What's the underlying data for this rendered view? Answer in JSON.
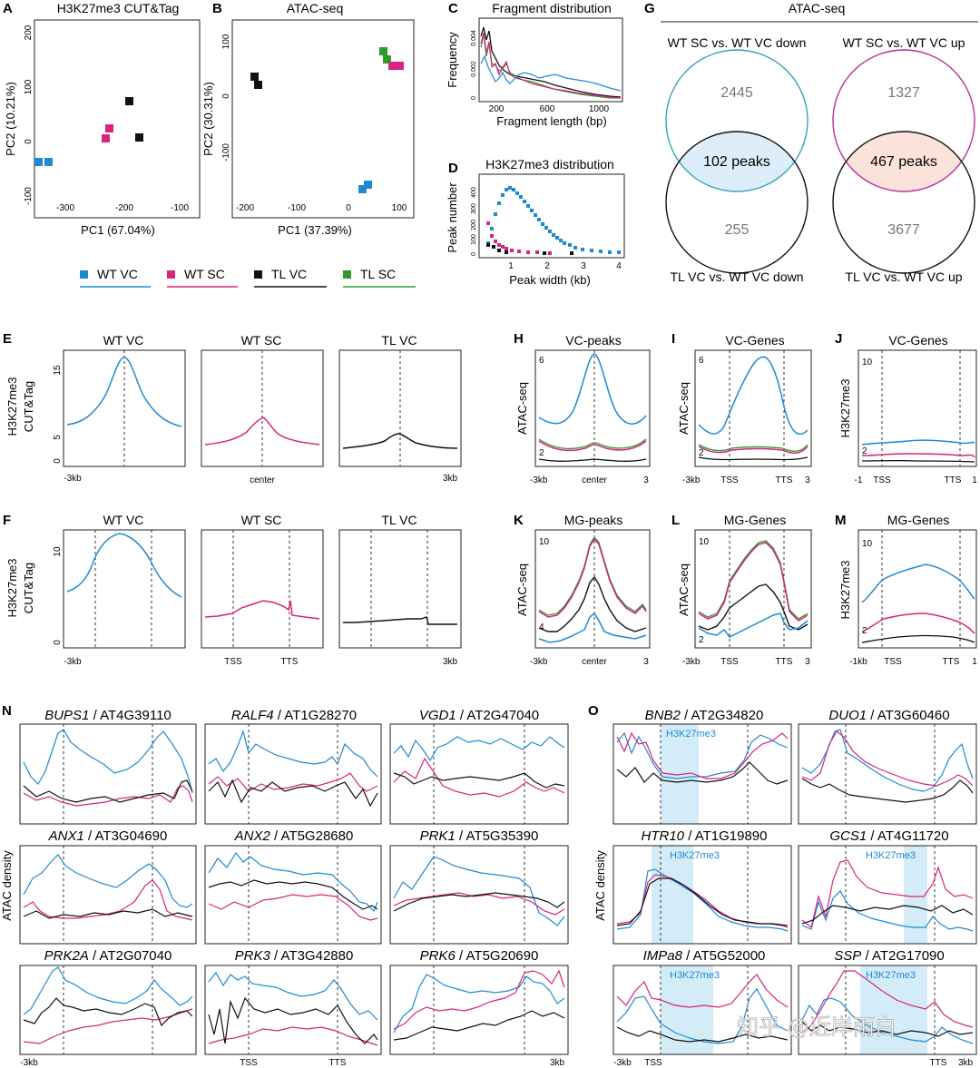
{
  "colors": {
    "wt_vc": "#1f8ad0",
    "wt_sc": "#d6247f",
    "tl_vc": "#111111",
    "tl_sc": "#2e9a2e",
    "shade": "#d4ecf8",
    "venn_peach": "#fbe3dc",
    "venn_blue": "#ddeefa"
  },
  "legend": [
    {
      "label": "WT VC",
      "color": "#1f8ad0"
    },
    {
      "label": "WT SC",
      "color": "#d6247f"
    },
    {
      "label": "TL VC",
      "color": "#111111"
    },
    {
      "label": "TL SC",
      "color": "#2e9a2e"
    }
  ],
  "panel_a": {
    "letter": "A",
    "title": "H3K27me3 CUT&Tag",
    "xlabel": "PC1  (67.04%)",
    "ylabel": "PC2  (10.21%)",
    "xticks": [
      "-300",
      "-200",
      "-100"
    ],
    "yticks": [
      "200",
      "100",
      "0",
      "-100"
    ]
  },
  "panel_b": {
    "letter": "B",
    "title": "ATAC-seq",
    "xlabel": "PC1  (37.39%)",
    "ylabel": "PC2  (30.31%)",
    "xticks": [
      "-200",
      "-100",
      "0",
      "100"
    ],
    "yticks": [
      "100",
      "0",
      "-100"
    ]
  },
  "panel_c": {
    "letter": "C",
    "title": "Fragment distribution",
    "xlabel": "Fragment length (bp)",
    "ylabel": "Frequency",
    "xticks": [
      "200",
      "600",
      "1000"
    ],
    "yticks": [
      "0.004",
      "0.002",
      "0"
    ]
  },
  "panel_d": {
    "letter": "D",
    "title": "H3K27me3 distribution",
    "xlabel": "Peak width (kb)",
    "ylabel": "Peak number",
    "xticks": [
      "1",
      "2",
      "3",
      "4"
    ],
    "yticks": [
      "400",
      "300",
      "200",
      "100",
      "0"
    ]
  },
  "panel_g": {
    "letter": "G",
    "title": "ATAC-seq",
    "top_left": "WT SC vs. WT VC down",
    "top_right": "WT SC vs. WT VC up",
    "bottom_left": "TL VC vs. WT VC down",
    "bottom_right": "TL VC vs. WT VC up",
    "left_top_count": "2445",
    "left_overlap": "102 peaks",
    "left_bottom_count": "255",
    "right_top_count": "1327",
    "right_overlap": "467 peaks",
    "right_bottom_count": "3677"
  },
  "row_e": {
    "letter": "E",
    "ylabel1": "H3K27me3",
    "ylabel2": "CUT&Tag",
    "titles": [
      "WT VC",
      "WT SC",
      "TL VC"
    ],
    "ytick": [
      "15",
      "5",
      "0"
    ],
    "xticks": [
      "-3kb",
      "center",
      "3kb"
    ]
  },
  "row_f": {
    "letter": "F",
    "ylabel1": "H3K27me3",
    "ylabel2": "CUT&Tag",
    "titles": [
      "WT VC",
      "WT SC",
      "TL VC"
    ],
    "ytick": [
      "10",
      "0"
    ],
    "xticks": [
      "-3kb",
      "TSS",
      "TTS",
      "3kb"
    ]
  },
  "row_h": [
    {
      "letter": "H",
      "title": "VC-peaks",
      "ylabel": "ATAC-seq",
      "top": "6",
      "bottom": "2",
      "xticks": [
        "-3kb",
        "center",
        "3"
      ]
    },
    {
      "letter": "I",
      "title": "VC-Genes",
      "ylabel": "ATAC-seq",
      "top": "6",
      "bottom": "2",
      "xticks": [
        "-3kb",
        "TSS",
        "TTS",
        "3"
      ]
    },
    {
      "letter": "J",
      "title": "VC-Genes",
      "ylabel": "H3K27me3",
      "top": "10",
      "bottom": "2",
      "xticks": [
        "-1",
        "TSS",
        "TTS",
        "1"
      ]
    }
  ],
  "row_k": [
    {
      "letter": "K",
      "title": "MG-peaks",
      "ylabel": "ATAC-seq",
      "top": "10",
      "bottom": "4",
      "xticks": [
        "-3kb",
        "center",
        "3"
      ]
    },
    {
      "letter": "L",
      "title": "MG-Genes",
      "ylabel": "ATAC-seq",
      "top": "10",
      "bottom": "2",
      "xticks": [
        "-3kb",
        "TSS",
        "TTS",
        "3"
      ]
    },
    {
      "letter": "M",
      "title": "MG-Genes",
      "ylabel": "H3K27me3",
      "top": "10",
      "bottom": "2",
      "xticks": [
        "-1kb",
        "TSS",
        "TTS",
        "1"
      ]
    }
  ],
  "panel_n": {
    "letter": "N",
    "ylabel": "ATAC density",
    "xticks": [
      "-3kb",
      "TSS",
      "TTS",
      "3kb"
    ],
    "genes": [
      {
        "name": "BUPS1",
        "id": " / AT4G39110"
      },
      {
        "name": "RALF4",
        "id": " / AT1G28270"
      },
      {
        "name": "VGD1",
        "id": " / AT2G47040"
      },
      {
        "name": "ANX1",
        "id": " / AT3G04690"
      },
      {
        "name": "ANX2",
        "id": " / AT5G28680"
      },
      {
        "name": "PRK1",
        "id": " / AT5G35390"
      },
      {
        "name": "PRK2A",
        "id": " / AT2G07040"
      },
      {
        "name": "PRK3",
        "id": " / AT3G42880"
      },
      {
        "name": "PRK6",
        "id": " / AT5G20690"
      }
    ]
  },
  "panel_o": {
    "letter": "O",
    "ylabel": "ATAC density",
    "shade_label": "H3K27me3",
    "xticks": [
      "-3kb",
      "TSS",
      "TTS",
      "3kb"
    ],
    "genes": [
      {
        "name": "BNB2",
        "id": " / AT2G34820"
      },
      {
        "name": "DUO1",
        "id": " / AT3G60460"
      },
      {
        "name": "HTR10",
        "id": " / AT1G19890"
      },
      {
        "name": "GCS1",
        "id": " / AT4G11720"
      },
      {
        "name": "IMPa8",
        "id": " / AT5G52000"
      },
      {
        "name": "SSP",
        "id": " / AT2G17090"
      }
    ]
  },
  "watermark": "知乎 @近岸雨白"
}
